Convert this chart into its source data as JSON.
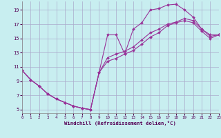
{
  "xlabel": "Windchill (Refroidissement éolien,°C)",
  "bg_color": "#c8eef0",
  "line_color": "#993399",
  "grid_color": "#aaaacc",
  "xmin": 0,
  "xmax": 23,
  "ymin": 4.5,
  "ymax": 20.2,
  "yticks": [
    5,
    7,
    9,
    11,
    13,
    15,
    17,
    19
  ],
  "xticks": [
    0,
    1,
    2,
    3,
    4,
    5,
    6,
    7,
    8,
    9,
    10,
    11,
    12,
    13,
    14,
    15,
    16,
    17,
    18,
    19,
    20,
    21,
    22,
    23
  ],
  "series1_x": [
    0,
    1,
    2,
    3,
    4,
    5,
    6,
    7,
    8,
    9,
    10,
    11,
    12,
    13,
    14,
    15,
    16,
    17,
    18,
    19,
    20,
    21,
    22,
    23
  ],
  "series1_y": [
    10.5,
    9.2,
    8.3,
    7.2,
    6.5,
    6.0,
    5.5,
    5.2,
    5.0,
    10.2,
    15.5,
    15.5,
    12.8,
    16.3,
    17.2,
    19.0,
    19.2,
    19.7,
    19.8,
    19.0,
    18.0,
    16.3,
    15.5,
    15.5
  ],
  "series2_x": [
    0,
    1,
    2,
    3,
    4,
    5,
    6,
    7,
    8,
    9,
    10,
    11,
    12,
    13,
    14,
    15,
    16,
    17,
    18,
    19,
    20,
    21,
    22,
    23
  ],
  "series2_y": [
    10.5,
    9.2,
    8.3,
    7.2,
    6.5,
    6.0,
    5.5,
    5.2,
    5.0,
    10.2,
    12.3,
    12.8,
    13.2,
    13.8,
    14.8,
    15.8,
    16.3,
    17.0,
    17.3,
    17.8,
    17.5,
    16.3,
    15.3,
    15.5
  ],
  "series3_x": [
    0,
    1,
    2,
    3,
    4,
    5,
    6,
    7,
    8,
    9,
    10,
    11,
    12,
    13,
    14,
    15,
    16,
    17,
    18,
    19,
    20,
    21,
    22,
    23
  ],
  "series3_y": [
    10.5,
    9.2,
    8.3,
    7.2,
    6.5,
    6.0,
    5.5,
    5.2,
    5.0,
    10.2,
    11.8,
    12.2,
    12.8,
    13.3,
    14.2,
    15.2,
    15.8,
    16.8,
    17.2,
    17.5,
    17.2,
    16.0,
    15.0,
    15.5
  ],
  "marker": "D",
  "markersize": 2.0,
  "linewidth": 0.8
}
